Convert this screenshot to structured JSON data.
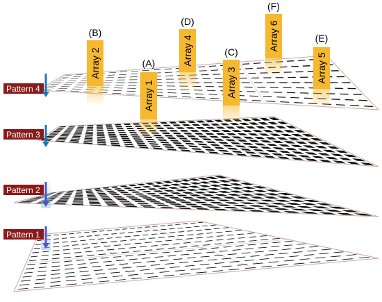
{
  "patterns": [
    {
      "label": "Pattern 4",
      "cell": "dash"
    },
    {
      "label": "Pattern 3",
      "cell": "square"
    },
    {
      "label": "Pattern 2",
      "cell": "square"
    },
    {
      "label": "Pattern 1",
      "cell": "dash"
    }
  ],
  "arrays": [
    {
      "letter": "(A)",
      "label": "Array 1"
    },
    {
      "letter": "(B)",
      "label": "Array 2"
    },
    {
      "letter": "(C)",
      "label": "Array 3"
    },
    {
      "letter": "(D)",
      "label": "Array 4"
    },
    {
      "letter": "(E)",
      "label": "Array 5"
    },
    {
      "letter": "(F)",
      "label": "Array 6"
    }
  ],
  "colors": {
    "tag_fill": "#8b1a1a",
    "arrow": "#1e73be",
    "array_bar": "#f5b82e",
    "plate_edge": "#c9a7a7",
    "cell": "#111111"
  }
}
